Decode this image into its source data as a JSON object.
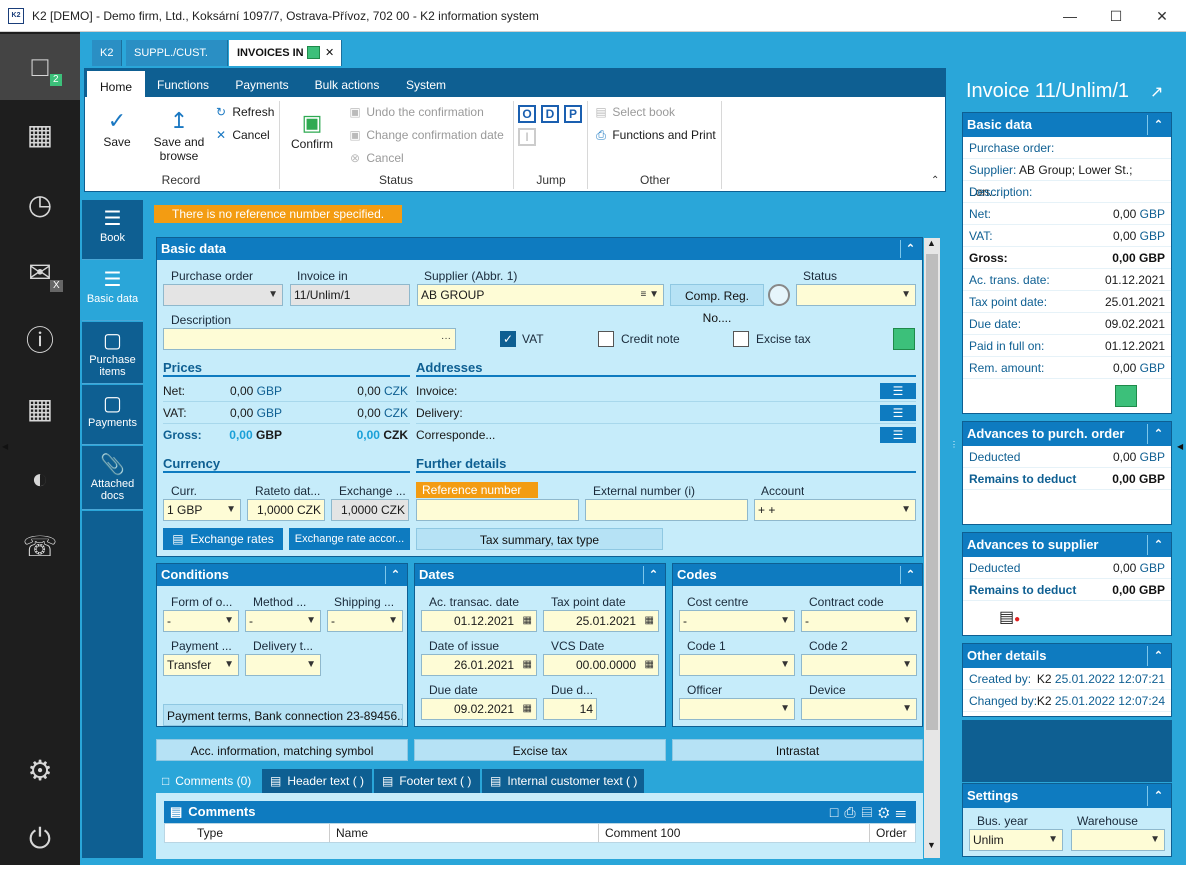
{
  "window": {
    "title": "K2 [DEMO] - Demo firm, Ltd., Koksární 1097/7, Ostrava-Přívoz, 702 00 - K2 information system",
    "app_icon_text": "K2"
  },
  "leftbar": {
    "badge1": "2",
    "badge2": "X"
  },
  "doc_tabs": [
    "K2",
    "SUPPL./CUST.",
    "INVOICES IN"
  ],
  "ribbon": {
    "tabs": [
      "Home",
      "Functions",
      "Payments",
      "Bulk actions",
      "System"
    ],
    "save": "Save",
    "save_browse": "Save and browse",
    "refresh": "Refresh",
    "cancel": "Cancel",
    "group_record": "Record",
    "confirm": "Confirm",
    "undo_confirmation": "Undo the confirmation",
    "change_conf_date": "Change confirmation date",
    "cancel2": "Cancel",
    "group_status": "Status",
    "jump_o1": "O",
    "jump_d": "D",
    "jump_p": "P",
    "group_jump": "Jump",
    "select_book": "Select book",
    "functions_print": "Functions and Print",
    "group_other": "Other"
  },
  "vnav": [
    "Book",
    "Basic data",
    "Purchase items",
    "Payments",
    "Attached docs"
  ],
  "warning": "There is no reference number specified.",
  "basic": {
    "title": "Basic data",
    "purchase_order_lbl": "Purchase order",
    "invoice_in_lbl": "Invoice in",
    "invoice_in_val": "11/Unlim/1",
    "supplier_lbl": "Supplier (Abbr. 1)",
    "supplier_val": "AB GROUP",
    "comp_reg_btn": "Comp. Reg. No....",
    "status_lbl": "Status",
    "description_lbl": "Description",
    "description_dots": "···",
    "vat_lbl": "VAT",
    "credit_note_lbl": "Credit note",
    "excise_tax_lbl": "Excise tax"
  },
  "prices": {
    "title": "Prices",
    "net_lbl": "Net:",
    "net_gbp": "0,00",
    "net_czk": "0,00",
    "vat_lbl": "VAT:",
    "vat_gbp": "0,00",
    "vat_czk": "0,00",
    "gross_lbl": "Gross:",
    "gross_gbp": "0,00",
    "gross_czk": "0,00",
    "cur1": "GBP",
    "cur2": "CZK"
  },
  "addresses": {
    "title": "Addresses",
    "invoice": "Invoice:",
    "delivery": "Delivery:",
    "correspondence": "Corresponde..."
  },
  "currency": {
    "title": "Currency",
    "curr_lbl": "Curr.",
    "curr_val": "1 GBP",
    "rate_lbl": "Rateto dat...",
    "rate_val": "1,0000 CZK",
    "exch_lbl": "Exchange ...",
    "exch_val": "1,0000 CZK",
    "btn_rates": "Exchange rates",
    "btn_rate_acc": "Exchange rate accor..."
  },
  "further": {
    "title": "Further details",
    "ref_lbl": "Reference number",
    "ext_lbl": "External number (i)",
    "account_lbl": "Account",
    "account_val": "+ +",
    "tax_summary": "Tax summary, tax type"
  },
  "conditions": {
    "title": "Conditions",
    "form_lbl": "Form of o...",
    "form_val": "-",
    "method_lbl": "Method ...",
    "method_val": "-",
    "shipping_lbl": "Shipping ...",
    "shipping_val": "-",
    "payment_lbl": "Payment ...",
    "payment_val": "Transfer",
    "delivery_lbl": "Delivery t...",
    "payment_terms": "Payment terms, Bank connection 23-89456..."
  },
  "dates": {
    "title": "Dates",
    "ac_lbl": "Ac. transac. date",
    "ac_val": "01.12.2021",
    "tp_lbl": "Tax point date",
    "tp_val": "25.01.2021",
    "issue_lbl": "Date of issue",
    "issue_val": "26.01.2021",
    "vcs_lbl": "VCS Date",
    "vcs_val": "00.00.0000",
    "due_lbl": "Due date",
    "due_val": "09.02.2021",
    "dued_lbl": "Due d...",
    "dued_val": "14"
  },
  "codes": {
    "title": "Codes",
    "cost_lbl": "Cost centre",
    "cost_val": "-",
    "contract_lbl": "Contract code",
    "contract_val": "-",
    "code1_lbl": "Code 1",
    "code2_lbl": "Code 2",
    "officer_lbl": "Officer",
    "device_lbl": "Device"
  },
  "bottom_buttons": [
    "Acc. information, matching symbol",
    "Excise tax",
    "Intrastat"
  ],
  "bottom_tabs": [
    "Comments (0)",
    "Header text ( )",
    "Footer text ( )",
    "Internal customer text ( )"
  ],
  "comments": {
    "title": "Comments",
    "columns": [
      "Type",
      "Name",
      "Comment 100",
      "Order"
    ]
  },
  "right": {
    "title": "Invoice 11/Unlim/1",
    "basic_title": "Basic data",
    "purchase_order": "Purchase order:",
    "supplier_k": "Supplier:",
    "supplier_v": "AB Group; Lower St.; Lon...",
    "description": "Description:",
    "net_k": "Net:",
    "net_v": "0,00",
    "vat_k": "VAT:",
    "vat_v": "0,00",
    "gross_k": "Gross:",
    "gross_v": "0,00",
    "ac_k": "Ac. trans. date:",
    "ac_v": "01.12.2021",
    "tp_k": "Tax point date:",
    "tp_v": "25.01.2021",
    "due_k": "Due date:",
    "due_v": "09.02.2021",
    "paid_k": "Paid in full on:",
    "paid_v": "01.12.2021",
    "rem_k": "Rem. amount:",
    "rem_v": "0,00",
    "gbp": "GBP",
    "adv_po_title": "Advances to purch. order",
    "deducted_k": "Deducted",
    "deducted_v": "0,00",
    "remains_k": "Remains to deduct",
    "remains_v": "0,00",
    "adv_sup_title": "Advances to supplier",
    "deducted2_v": "0,00",
    "remains2_v": "0,00",
    "other_title": "Other details",
    "created_k": "Created by:",
    "created_user": "K2",
    "created_v": "25.01.2022 12:07:21",
    "changed_k": "Changed by:",
    "changed_user": "K2",
    "changed_v": "25.01.2022 12:07:24",
    "settings_title": "Settings",
    "bus_year_lbl": "Bus. year",
    "bus_year_val": "Unlim",
    "warehouse_lbl": "Warehouse"
  },
  "colors": {
    "accent": "#0e7bc0",
    "dark": "#0e5f92",
    "bg": "#2aa6d9",
    "green": "#3cc07a",
    "warning": "#f39c12"
  }
}
